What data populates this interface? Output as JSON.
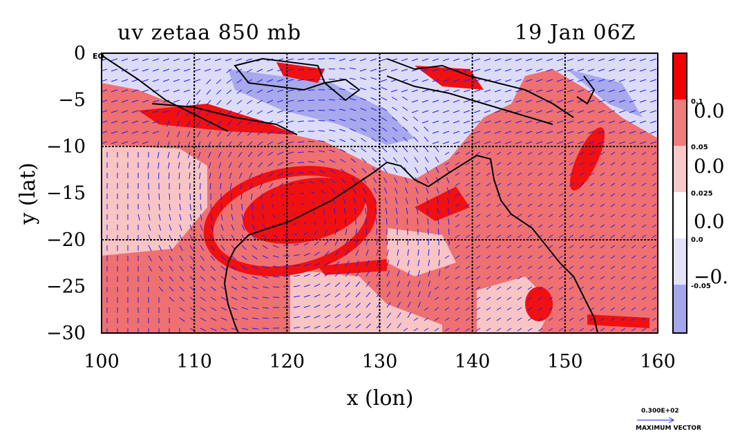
{
  "title_left": "uv zetaa 850 mb",
  "title_right": "19 Jan 06Z",
  "eq_label": "EQ",
  "axes": {
    "xlabel": "x (lon)",
    "ylabel": "y (lat)",
    "xticks": [
      "100",
      "110",
      "120",
      "130",
      "140",
      "150",
      "160"
    ],
    "yticks": [
      "0",
      "−5",
      "−10",
      "−15",
      "−20",
      "−25",
      "−30"
    ],
    "xlim": [
      100,
      160
    ],
    "ylim": [
      -30,
      0
    ]
  },
  "colorbar": {
    "small_labels": [
      "0.1",
      "0.05",
      "0.025",
      "0.0",
      "-0.05"
    ],
    "big_labels": [
      "0.0",
      "0.0",
      "0.0",
      "−0."
    ],
    "colors": [
      "#f20000",
      "#f07c7c",
      "#f9c8c8",
      "#ffffff",
      "#e3e3fa",
      "#a6a6ec"
    ]
  },
  "max_vector": {
    "value": "0.300E+02",
    "label": "MAXIMUM VECTOR"
  },
  "map_colors": {
    "strong_red": "#f01010",
    "mid_red": "#ef7070",
    "light_red": "#f8c4c4",
    "light_blue": "#dcdcf8",
    "mid_blue": "#a8a8ec",
    "vector": "#1a1aff",
    "coast": "#000000"
  }
}
